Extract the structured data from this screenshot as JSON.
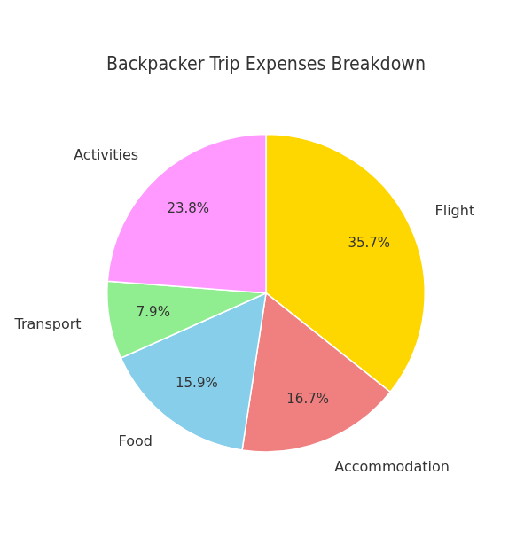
{
  "chart_data": {
    "type": "pie",
    "title": "Backpacker Trip Expenses Breakdown",
    "categories": [
      "Flight",
      "Accommodation",
      "Food",
      "Transport",
      "Activities"
    ],
    "values": [
      35.7,
      16.7,
      15.9,
      7.9,
      23.8
    ],
    "value_labels": [
      "35.7%",
      "16.7%",
      "15.9%",
      "7.9%",
      "23.8%"
    ],
    "colors": [
      "#FFD700",
      "#F08080",
      "#87CEEB",
      "#90EE90",
      "#FF99FF"
    ],
    "data_labels": true
  }
}
